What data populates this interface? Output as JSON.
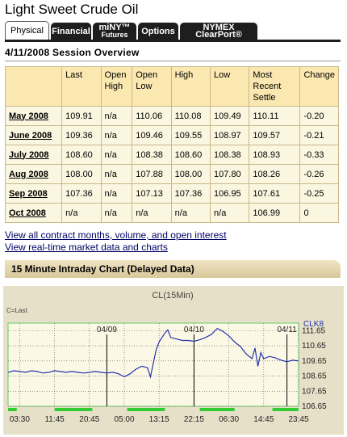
{
  "page_title": "Light Sweet Crude Oil",
  "tabs": [
    {
      "label": "Physical",
      "sub": "",
      "active": true
    },
    {
      "label": "Financial",
      "sub": "",
      "active": false
    },
    {
      "label": "miNY™",
      "sub": "Futures",
      "active": false
    },
    {
      "label": "Options",
      "sub": "",
      "active": false
    },
    {
      "label": "NYMEX ClearPort®",
      "sub": "",
      "active": false
    }
  ],
  "session_title": "4/11/2008 Session Overview",
  "table": {
    "headers": [
      "",
      "Last",
      "Open High",
      "Open Low",
      "High",
      "Low",
      "Most Recent Settle",
      "Change"
    ],
    "rows": [
      [
        "May 2008",
        "109.91",
        "n/a",
        "110.06",
        "110.08",
        "109.49",
        "110.11",
        "-0.20"
      ],
      [
        "June 2008",
        "109.36",
        "n/a",
        "109.46",
        "109.55",
        "108.97",
        "109.57",
        "-0.21"
      ],
      [
        "July 2008",
        "108.60",
        "n/a",
        "108.38",
        "108.60",
        "108.38",
        "108.93",
        "-0.33"
      ],
      [
        "Aug 2008",
        "108.00",
        "n/a",
        "107.88",
        "108.00",
        "107.80",
        "108.26",
        "-0.26"
      ],
      [
        "Sep 2008",
        "107.36",
        "n/a",
        "107.13",
        "107.36",
        "106.95",
        "107.61",
        "-0.25"
      ],
      [
        "Oct 2008",
        "n/a",
        "n/a",
        "n/a",
        "n/a",
        "n/a",
        "106.99",
        "0"
      ]
    ]
  },
  "links": {
    "all_contracts": "View all contract months, volume, and open interest",
    "realtime": "View real-time market data and charts"
  },
  "chart_section_title": "15 Minute Intraday Chart (Delayed Data)",
  "colors": {
    "chart_bg": "#e7e0c8",
    "plot_bg": "#fcf8e6",
    "plot_border": "#66cc66",
    "line": "#2233aa",
    "session_bar": "#33cc33",
    "table_header": "#fbe8b0",
    "table_cell": "#fbf6e0"
  },
  "chart_data": {
    "type": "line",
    "title": "CL(15Min)",
    "legend": "C=Last",
    "symbol": "CLK8",
    "ylim": [
      106.65,
      112.15
    ],
    "y_ticks": [
      111.65,
      110.65,
      109.65,
      108.65,
      107.65,
      106.65
    ],
    "x_tick_labels": [
      "03:30",
      "11:45",
      "20:45",
      "05:00",
      "13:15",
      "22:15",
      "06:30",
      "14:45",
      "23:45"
    ],
    "date_markers": [
      "04/09",
      "04/10",
      "04/11"
    ],
    "x_domain": [
      0,
      100
    ],
    "x_tick_positions": [
      4,
      16,
      28,
      40,
      52,
      64,
      76,
      88,
      100
    ],
    "date_marker_positions": [
      34,
      64,
      96
    ],
    "session_bars": [
      [
        0,
        3
      ],
      [
        16,
        29
      ],
      [
        41,
        54
      ],
      [
        66,
        78
      ],
      [
        91,
        100
      ]
    ],
    "series": [
      {
        "values": [
          [
            0,
            108.9
          ],
          [
            2,
            109.0
          ],
          [
            4,
            108.95
          ],
          [
            6,
            108.9
          ],
          [
            8,
            109.0
          ],
          [
            10,
            108.95
          ],
          [
            12,
            108.85
          ],
          [
            14,
            108.9
          ],
          [
            16,
            109.0
          ],
          [
            18,
            108.95
          ],
          [
            20,
            108.9
          ],
          [
            22,
            108.95
          ],
          [
            24,
            108.9
          ],
          [
            26,
            108.85
          ],
          [
            28,
            108.9
          ],
          [
            30,
            108.95
          ],
          [
            32,
            108.9
          ],
          [
            34,
            108.85
          ],
          [
            36,
            108.9
          ],
          [
            38,
            108.8
          ],
          [
            40,
            108.6
          ],
          [
            42,
            108.8
          ],
          [
            44,
            109.1
          ],
          [
            46,
            109.3
          ],
          [
            48,
            109.2
          ],
          [
            49,
            108.6
          ],
          [
            50,
            109.5
          ],
          [
            51,
            110.4
          ],
          [
            52,
            110.9
          ],
          [
            53,
            111.2
          ],
          [
            54,
            111.5
          ],
          [
            55,
            111.7
          ],
          [
            56,
            111.2
          ],
          [
            58,
            111.1
          ],
          [
            60,
            111.0
          ],
          [
            62,
            111.0
          ],
          [
            64,
            110.95
          ],
          [
            66,
            111.05
          ],
          [
            68,
            111.2
          ],
          [
            70,
            111.4
          ],
          [
            72,
            111.8
          ],
          [
            74,
            111.6
          ],
          [
            76,
            111.3
          ],
          [
            78,
            110.9
          ],
          [
            80,
            110.6
          ],
          [
            82,
            110.1
          ],
          [
            84,
            109.8
          ],
          [
            85,
            110.5
          ],
          [
            86,
            109.3
          ],
          [
            87,
            110.2
          ],
          [
            88,
            109.8
          ],
          [
            90,
            109.95
          ],
          [
            92,
            109.85
          ],
          [
            94,
            109.7
          ],
          [
            96,
            109.6
          ],
          [
            98,
            109.7
          ],
          [
            100,
            109.65
          ]
        ]
      }
    ]
  }
}
